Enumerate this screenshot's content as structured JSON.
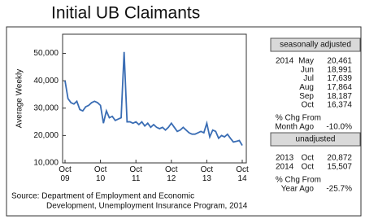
{
  "chart_data": {
    "type": "line",
    "title": "Initial UB Claimants",
    "y_label": "Average Weekly",
    "categories": [
      "Oct\n09",
      null,
      null,
      null,
      null,
      null,
      null,
      null,
      null,
      null,
      null,
      null,
      "Oct\n10",
      null,
      null,
      null,
      null,
      null,
      null,
      null,
      null,
      null,
      null,
      null,
      "Oct\n11",
      null,
      null,
      null,
      null,
      null,
      null,
      null,
      null,
      null,
      null,
      null,
      "Oct\n12",
      null,
      null,
      null,
      null,
      null,
      null,
      null,
      null,
      null,
      null,
      null,
      "Oct\n13",
      null,
      null,
      null,
      null,
      null,
      null,
      null,
      null,
      null,
      null,
      null,
      "Oct\n14"
    ],
    "series": [
      {
        "color": "#3a6db4",
        "values": [
          40000,
          33500,
          32000,
          31500,
          32500,
          29500,
          29000,
          30500,
          31000,
          32000,
          32500,
          32000,
          31000,
          24500,
          29000,
          26500,
          27000,
          25500,
          26000,
          26500,
          50500,
          25000,
          25000,
          24500,
          25000,
          24000,
          25000,
          23500,
          24500,
          23000,
          24000,
          23000,
          22500,
          23000,
          22000,
          23000,
          24500,
          23000,
          21500,
          22000,
          23000,
          22000,
          21000,
          20500,
          20500,
          21000,
          21500,
          21000,
          24500,
          19500,
          22000,
          21500,
          19000,
          20000,
          19500,
          20461,
          18991,
          17639,
          17864,
          18187,
          16374
        ]
      }
    ],
    "ylim": [
      10000,
      57000
    ],
    "yticks": [
      {
        "value": 10000,
        "label": "10,000"
      },
      {
        "value": 20000,
        "label": "20,000"
      },
      {
        "value": 30000,
        "label": "30,000"
      },
      {
        "value": 40000,
        "label": "40,000"
      },
      {
        "value": 50000,
        "label": "50,000"
      }
    ],
    "panel": {
      "sa_header": "seasonally adjusted",
      "sa_rows": [
        [
          "2014",
          "May",
          "20,461"
        ],
        [
          null,
          "Jun",
          "18,991"
        ],
        [
          null,
          "Jul",
          "17,639"
        ],
        [
          null,
          "Aug",
          "17,864"
        ],
        [
          null,
          "Sep",
          "18,187"
        ],
        [
          null,
          "Oct",
          "16,374"
        ]
      ],
      "sa_chg": [
        "% Chg From",
        "Month Ago",
        "-10.0%"
      ],
      "un_header": "unadjusted",
      "un_rows": [
        [
          "2013",
          "Oct",
          "20,872"
        ],
        [
          "2014",
          "Oct",
          "15,507"
        ]
      ],
      "un_chg": [
        "% Chg From",
        "Year Ago",
        "-25.7%"
      ]
    },
    "source": [
      "Source:  Department of Employment and Economic",
      "Development, Unemployment Insurance Program, 2014"
    ]
  }
}
